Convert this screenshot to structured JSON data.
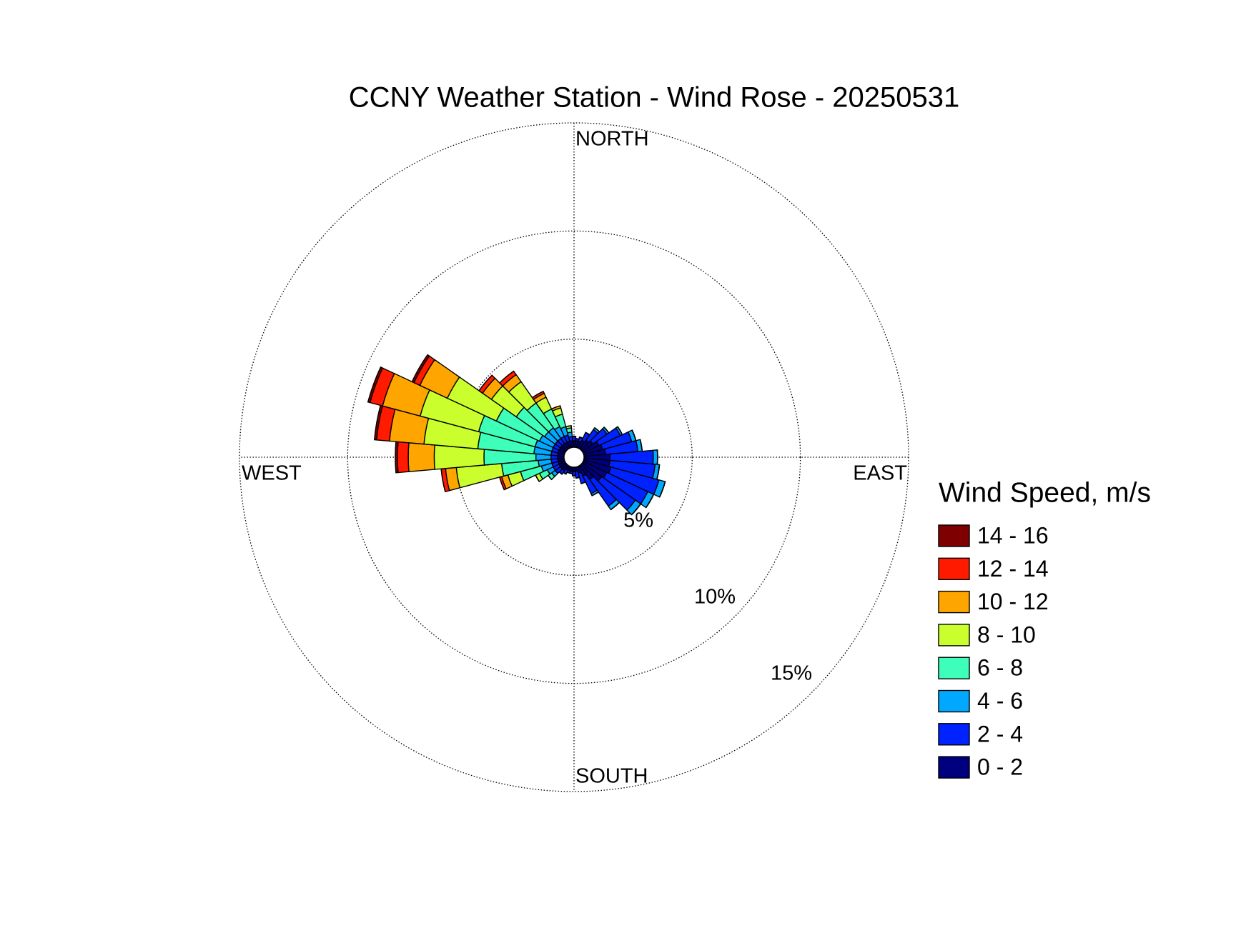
{
  "chart_data": {
    "type": "windrose",
    "title": "CCNY Weather Station - Wind Rose - 20250531",
    "direction_labels": [
      "NORTH",
      "EAST",
      "SOUTH",
      "WEST"
    ],
    "legend_title": "Wind Speed, m/s",
    "categories": [
      null,
      null,
      null,
      null,
      null,
      null,
      null,
      null,
      null,
      null,
      null,
      null,
      null,
      null,
      null,
      null,
      null,
      null,
      null,
      null,
      null,
      null,
      null,
      null,
      null,
      null,
      null,
      null,
      null,
      null,
      null,
      null,
      null,
      null,
      null,
      null
    ],
    "rlim": [
      0,
      15
    ],
    "rticks": [
      {
        "value": 5,
        "label": "5%"
      },
      {
        "value": 10,
        "label": "10%"
      },
      {
        "value": 15,
        "label": "15%"
      }
    ],
    "grid": true,
    "series": [
      {
        "name": "0 - 2",
        "color": "#00007f",
        "values": [
          0.3,
          0.3,
          0.3,
          0.4,
          0.5,
          0.6,
          0.8,
          0.9,
          1.0,
          1.2,
          1.2,
          1.3,
          1.2,
          1.1,
          0.8,
          0.5,
          0.3,
          0.2,
          0.2,
          0.2,
          0.2,
          0.2,
          0.3,
          0.3,
          0.3,
          0.3,
          0.3,
          0.3,
          0.3,
          0.3,
          0.3,
          0.3,
          0.3,
          0.3,
          0.3,
          0.3
        ]
      },
      {
        "name": "2 - 4",
        "color": "#0022ff",
        "values": [
          0.2,
          0.1,
          0.2,
          0.4,
          0.6,
          0.8,
          1.1,
          1.4,
          1.5,
          2.0,
          2.1,
          2.3,
          2.1,
          1.9,
          1.5,
          0.9,
          0.5,
          0.3,
          0.2,
          0.1,
          0.1,
          0.2,
          0.2,
          0.3,
          0.3,
          0.3,
          0.3,
          0.3,
          0.3,
          0.3,
          0.3,
          0.3,
          0.3,
          0.3,
          0.3,
          0.2
        ]
      },
      {
        "name": "4 - 6",
        "color": "#00a9ff",
        "values": [
          0,
          0,
          0,
          0,
          0.1,
          0.1,
          0.1,
          0.2,
          0.2,
          0.2,
          0.2,
          0.3,
          0.3,
          0.3,
          0.2,
          0.1,
          0,
          0,
          0,
          0,
          0,
          0,
          0,
          0.2,
          0.3,
          0.5,
          0.6,
          0.7,
          0.8,
          0.8,
          0.7,
          0.6,
          0.6,
          0.5,
          0.4,
          0.2
        ]
      },
      {
        "name": "6 - 8",
        "color": "#3dffb9",
        "values": [
          0,
          0,
          0,
          0,
          0,
          0,
          0,
          0,
          0,
          0,
          0,
          0,
          0,
          0,
          0,
          0,
          0,
          0,
          0,
          0,
          0,
          0,
          0,
          0.2,
          0.4,
          1.0,
          1.7,
          2.4,
          2.6,
          2.7,
          2.2,
          1.6,
          1.4,
          0.9,
          0.6,
          0.2
        ]
      },
      {
        "name": "8 - 10",
        "color": "#caff2d",
        "values": [
          0,
          0,
          0,
          0,
          0,
          0,
          0,
          0,
          0,
          0,
          0,
          0,
          0,
          0,
          0,
          0,
          0,
          0,
          0,
          0,
          0,
          0,
          0,
          0,
          0.2,
          0.6,
          2.1,
          2.3,
          2.5,
          2.8,
          2.5,
          1.4,
          1.2,
          0.6,
          0.3,
          0.1
        ]
      },
      {
        "name": "10 - 12",
        "color": "#ffa500",
        "values": [
          0,
          0,
          0,
          0,
          0,
          0,
          0,
          0,
          0,
          0,
          0,
          0,
          0,
          0,
          0,
          0,
          0,
          0,
          0,
          0,
          0,
          0,
          0,
          0,
          0,
          0.3,
          0.5,
          1.2,
          1.6,
          1.8,
          1.4,
          0.5,
          0.4,
          0.2,
          0.1,
          0
        ]
      },
      {
        "name": "12 - 14",
        "color": "#ff1a00",
        "values": [
          0,
          0,
          0,
          0,
          0,
          0,
          0,
          0,
          0,
          0,
          0,
          0,
          0,
          0,
          0,
          0,
          0,
          0,
          0,
          0,
          0,
          0,
          0,
          0,
          0,
          0.1,
          0.2,
          0.5,
          0.6,
          0.6,
          0.3,
          0.2,
          0.2,
          0.1,
          0,
          0
        ]
      },
      {
        "name": "14 - 16",
        "color": "#7f0000",
        "values": [
          0,
          0,
          0,
          0,
          0,
          0,
          0,
          0,
          0,
          0,
          0,
          0,
          0,
          0,
          0,
          0,
          0,
          0,
          0,
          0,
          0,
          0,
          0,
          0,
          0,
          0,
          0,
          0.1,
          0.1,
          0.1,
          0.1,
          0,
          0,
          0,
          0,
          0
        ]
      }
    ]
  }
}
